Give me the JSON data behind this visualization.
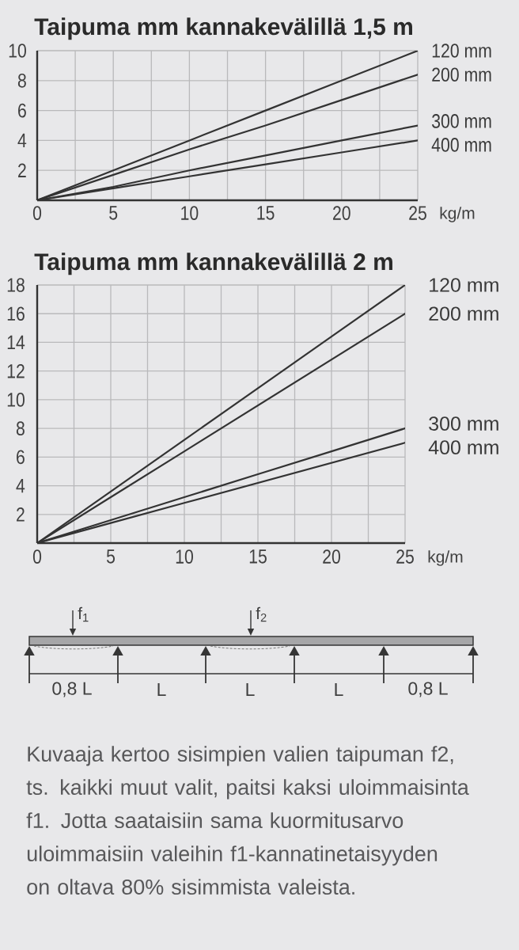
{
  "chart_data": [
    {
      "type": "line",
      "title": "Taipuma mm kannakevälillä 1,5 m",
      "xlabel": "kg/m",
      "x": [
        0,
        5,
        10,
        15,
        20,
        25
      ],
      "series": [
        {
          "name": "120 mm",
          "color": "#333333",
          "values": [
            0,
            2,
            4,
            6,
            8,
            10
          ]
        },
        {
          "name": "200 mm",
          "color": "#333333",
          "values": [
            0,
            1.7,
            3.4,
            5,
            6.7,
            8.4
          ]
        },
        {
          "name": "300 mm",
          "color": "#333333",
          "values": [
            0,
            0.9,
            2,
            3,
            4,
            5
          ]
        },
        {
          "name": "400 mm",
          "color": "#333333",
          "values": [
            0,
            0.8,
            1.6,
            2.4,
            3.2,
            4
          ]
        }
      ],
      "xlim": [
        0,
        25
      ],
      "ylim": [
        0,
        10
      ],
      "xticks": [
        0,
        {
          "value": 2.5,
          "label": null
        },
        5,
        {
          "value": 7.5,
          "label": null
        },
        10,
        {
          "value": 12.5,
          "label": null
        },
        15,
        {
          "value": 17.5,
          "label": null
        },
        20,
        {
          "value": 22.5,
          "label": null
        },
        25
      ],
      "yticks": [
        2,
        4,
        6,
        8,
        10
      ],
      "grid": true
    },
    {
      "type": "line",
      "title": "Taipuma mm kannakevälillä 2 m",
      "xlabel": "kg/m",
      "x": [
        0,
        5,
        10,
        15,
        20,
        25
      ],
      "series": [
        {
          "name": "120 mm",
          "color": "#333333",
          "values": [
            0,
            3.6,
            7.2,
            10.8,
            14.4,
            18
          ]
        },
        {
          "name": "200 mm",
          "color": "#333333",
          "values": [
            0,
            3.2,
            6.4,
            9.6,
            12.8,
            16
          ]
        },
        {
          "name": "300 mm",
          "color": "#333333",
          "values": [
            0,
            1.6,
            3.2,
            4.8,
            6.4,
            8
          ]
        },
        {
          "name": "400 mm",
          "color": "#333333",
          "values": [
            0,
            1.4,
            2.8,
            4.2,
            5.6,
            7
          ]
        }
      ],
      "xlim": [
        0,
        25
      ],
      "ylim": [
        0,
        18
      ],
      "xticks": [
        0,
        {
          "value": 2.5,
          "label": null
        },
        5,
        {
          "value": 7.5,
          "label": null
        },
        10,
        {
          "value": 12.5,
          "label": null
        },
        15,
        {
          "value": 17.5,
          "label": null
        },
        20,
        {
          "value": 22.5,
          "label": null
        },
        25
      ],
      "yticks": [
        2,
        4,
        6,
        8,
        10,
        12,
        14,
        16,
        18
      ],
      "grid": true
    },
    {
      "type": "other",
      "annotations": [
        "f$_{1}$",
        "f$_{2}$",
        "0,8 L",
        "L",
        "L",
        "L",
        "0,8 L",
        "Kuvaaja kertoo sisimpien valien taipuman f2, ts. kaikki muut valit, paitsi kaksi uloimmaisinta f1. Jotta saataisiin sama kuormitusarvo uloimmaisiin valeihin f1-kannatinetaisyyden on oltava 80% sisimmista valeista."
      ]
    }
  ]
}
